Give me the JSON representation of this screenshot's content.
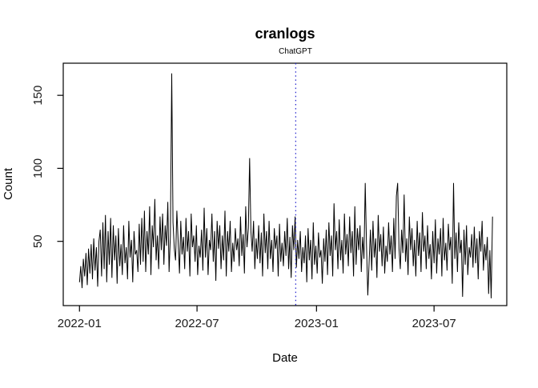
{
  "chart_data": {
    "type": "line",
    "title": "cranlogs",
    "xlabel": "Date",
    "ylabel": "Count",
    "line_color": "#000000",
    "x_start_date": "2022-01-01",
    "x_step_days": 2,
    "xlim_days": [
      -25,
      658
    ],
    "ylim": [
      6,
      172
    ],
    "grid": false,
    "y_ticks": [
      50,
      100,
      150
    ],
    "x_ticks": [
      {
        "label": "2022-01",
        "day": 0
      },
      {
        "label": "2022-07",
        "day": 181
      },
      {
        "label": "2023-01",
        "day": 365
      },
      {
        "label": "2023-07",
        "day": 546
      }
    ],
    "vline": {
      "label": "ChatGPT",
      "day": 333,
      "color": "#2e2ecf",
      "style": "dotted"
    },
    "values": [
      22,
      33,
      18,
      38,
      26,
      42,
      20,
      45,
      28,
      48,
      24,
      52,
      30,
      46,
      19,
      50,
      58,
      26,
      63,
      31,
      68,
      22,
      57,
      34,
      66,
      25,
      61,
      37,
      54,
      21,
      59,
      33,
      48,
      27,
      61,
      35,
      46,
      24,
      64,
      39,
      51,
      22,
      57,
      41,
      44,
      29,
      62,
      34,
      66,
      36,
      71,
      29,
      57,
      41,
      74,
      27,
      61,
      46,
      79,
      37,
      54,
      31,
      67,
      44,
      69,
      34,
      61,
      47,
      77,
      29,
      54,
      165,
      63,
      45,
      37,
      71,
      49,
      28,
      64,
      41,
      53,
      31,
      66,
      43,
      57,
      26,
      69,
      46,
      54,
      36,
      61,
      27,
      47,
      39,
      58,
      30,
      73,
      39,
      59,
      27,
      51,
      44,
      69,
      36,
      57,
      23,
      64,
      45,
      61,
      31,
      54,
      37,
      71,
      26,
      57,
      43,
      64,
      29,
      49,
      36,
      59,
      44,
      52,
      33,
      67,
      40,
      55,
      28,
      74,
      46,
      59,
      107,
      57,
      43,
      64,
      31,
      52,
      38,
      61,
      35,
      56,
      26,
      69,
      42,
      57,
      31,
      64,
      38,
      51,
      29,
      59,
      45,
      54,
      26,
      62,
      36,
      49,
      33,
      57,
      40,
      66,
      31,
      53,
      25,
      61,
      44,
      67,
      32,
      51,
      38,
      57,
      29,
      46,
      35,
      54,
      22,
      59,
      37,
      51,
      24,
      63,
      34,
      47,
      28,
      56,
      39,
      44,
      21,
      52,
      36,
      58,
      27,
      63,
      40,
      54,
      26,
      76,
      44,
      57,
      31,
      65,
      37,
      51,
      28,
      69,
      41,
      55,
      33,
      67,
      42,
      57,
      26,
      74,
      34,
      59,
      44,
      61,
      29,
      53,
      38,
      90,
      47,
      13,
      35,
      58,
      30,
      64,
      39,
      52,
      25,
      68,
      43,
      55,
      33,
      60,
      28,
      47,
      36,
      63,
      41,
      54,
      29,
      66,
      38,
      81,
      90,
      45,
      31,
      58,
      42,
      82,
      36,
      52,
      27,
      67,
      44,
      59,
      33,
      51,
      26,
      64,
      40,
      56,
      29,
      70,
      43,
      54,
      31,
      61,
      38,
      48,
      24,
      57,
      35,
      65,
      28,
      52,
      41,
      59,
      26,
      66,
      37,
      49,
      30,
      62,
      44,
      53,
      21,
      90,
      38,
      56,
      29,
      63,
      42,
      51,
      12,
      58,
      34,
      61,
      27,
      46,
      39,
      55,
      32,
      60,
      35,
      52,
      24,
      57,
      43,
      64,
      30,
      48,
      37,
      53,
      14,
      44,
      11,
      67
    ]
  }
}
